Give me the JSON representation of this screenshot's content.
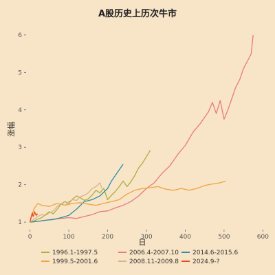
{
  "chart_data": {
    "type": "line",
    "title": "A股历史上历次牛市",
    "xlabel": "日",
    "ylabel": "涨幅",
    "xlim": [
      -10,
      610
    ],
    "ylim": [
      0.8,
      6.2
    ],
    "x_ticks": [
      0,
      100,
      200,
      300,
      400,
      500,
      600
    ],
    "y_ticks": [
      1,
      2,
      3,
      4,
      5,
      6
    ],
    "grid": false,
    "legend_position": "bottom",
    "series": [
      {
        "name": "1996.1-1997.5",
        "color": "#a9b03c",
        "points": [
          [
            0,
            1.0
          ],
          [
            10,
            1.03
          ],
          [
            20,
            1.08
          ],
          [
            30,
            1.12
          ],
          [
            40,
            1.2
          ],
          [
            50,
            1.28
          ],
          [
            60,
            1.22
          ],
          [
            70,
            1.35
          ],
          [
            80,
            1.48
          ],
          [
            90,
            1.55
          ],
          [
            100,
            1.5
          ],
          [
            110,
            1.62
          ],
          [
            120,
            1.7
          ],
          [
            130,
            1.65
          ],
          [
            140,
            1.58
          ],
          [
            150,
            1.62
          ],
          [
            160,
            1.72
          ],
          [
            170,
            1.85
          ],
          [
            180,
            1.78
          ],
          [
            190,
            1.9
          ],
          [
            200,
            1.6
          ],
          [
            210,
            1.72
          ],
          [
            220,
            1.82
          ],
          [
            230,
            1.95
          ],
          [
            240,
            2.1
          ],
          [
            250,
            1.95
          ],
          [
            260,
            2.08
          ],
          [
            270,
            2.25
          ],
          [
            280,
            2.45
          ],
          [
            290,
            2.58
          ],
          [
            300,
            2.75
          ],
          [
            310,
            2.92
          ]
        ]
      },
      {
        "name": "2006.4-2007.10",
        "color": "#e87b7b",
        "points": [
          [
            0,
            1.0
          ],
          [
            20,
            1.02
          ],
          [
            40,
            1.05
          ],
          [
            60,
            1.08
          ],
          [
            80,
            1.1
          ],
          [
            100,
            1.12
          ],
          [
            120,
            1.1
          ],
          [
            140,
            1.15
          ],
          [
            160,
            1.2
          ],
          [
            180,
            1.28
          ],
          [
            200,
            1.3
          ],
          [
            220,
            1.38
          ],
          [
            240,
            1.45
          ],
          [
            260,
            1.55
          ],
          [
            280,
            1.7
          ],
          [
            300,
            1.9
          ],
          [
            320,
            2.05
          ],
          [
            340,
            2.3
          ],
          [
            360,
            2.5
          ],
          [
            380,
            2.8
          ],
          [
            400,
            3.05
          ],
          [
            420,
            3.4
          ],
          [
            440,
            3.65
          ],
          [
            460,
            3.95
          ],
          [
            470,
            4.2
          ],
          [
            480,
            3.9
          ],
          [
            490,
            4.25
          ],
          [
            500,
            3.75
          ],
          [
            510,
            4.0
          ],
          [
            520,
            4.3
          ],
          [
            530,
            4.6
          ],
          [
            540,
            4.8
          ],
          [
            550,
            5.1
          ],
          [
            560,
            5.3
          ],
          [
            570,
            5.5
          ],
          [
            575,
            6.0
          ]
        ]
      },
      {
        "name": "2014.6-2015.6",
        "color": "#2b8fa8",
        "points": [
          [
            0,
            1.0
          ],
          [
            20,
            1.02
          ],
          [
            40,
            1.05
          ],
          [
            60,
            1.07
          ],
          [
            80,
            1.12
          ],
          [
            100,
            1.18
          ],
          [
            120,
            1.35
          ],
          [
            140,
            1.55
          ],
          [
            160,
            1.6
          ],
          [
            180,
            1.7
          ],
          [
            200,
            1.9
          ],
          [
            210,
            2.1
          ],
          [
            220,
            2.25
          ],
          [
            230,
            2.4
          ],
          [
            240,
            2.55
          ]
        ]
      },
      {
        "name": "1999.5-2001.6",
        "color": "#f0a342",
        "points": [
          [
            0,
            1.0
          ],
          [
            10,
            1.35
          ],
          [
            20,
            1.5
          ],
          [
            30,
            1.45
          ],
          [
            50,
            1.42
          ],
          [
            70,
            1.5
          ],
          [
            90,
            1.45
          ],
          [
            110,
            1.5
          ],
          [
            130,
            1.52
          ],
          [
            150,
            1.48
          ],
          [
            170,
            1.45
          ],
          [
            190,
            1.5
          ],
          [
            210,
            1.55
          ],
          [
            230,
            1.6
          ],
          [
            250,
            1.75
          ],
          [
            270,
            1.85
          ],
          [
            290,
            1.9
          ],
          [
            310,
            1.92
          ],
          [
            330,
            1.95
          ],
          [
            350,
            1.88
          ],
          [
            370,
            1.85
          ],
          [
            390,
            1.9
          ],
          [
            410,
            1.85
          ],
          [
            430,
            1.9
          ],
          [
            450,
            1.98
          ],
          [
            470,
            2.02
          ],
          [
            490,
            2.05
          ],
          [
            505,
            2.1
          ]
        ]
      },
      {
        "name": "2008.11-2009.8",
        "color": "#d9b48a",
        "points": [
          [
            0,
            1.0
          ],
          [
            10,
            1.08
          ],
          [
            20,
            1.15
          ],
          [
            30,
            1.2
          ],
          [
            40,
            1.18
          ],
          [
            50,
            1.25
          ],
          [
            60,
            1.3
          ],
          [
            70,
            1.42
          ],
          [
            80,
            1.5
          ],
          [
            90,
            1.45
          ],
          [
            100,
            1.55
          ],
          [
            110,
            1.6
          ],
          [
            120,
            1.58
          ],
          [
            130,
            1.68
          ],
          [
            140,
            1.72
          ],
          [
            150,
            1.78
          ],
          [
            160,
            1.9
          ],
          [
            170,
            1.95
          ],
          [
            180,
            2.05
          ],
          [
            185,
            1.9
          ]
        ]
      },
      {
        "name": "2024.9-?",
        "color": "#e04e1e",
        "points": [
          [
            0,
            1.0
          ],
          [
            2,
            1.1
          ],
          [
            4,
            1.18
          ],
          [
            6,
            1.25
          ],
          [
            8,
            1.15
          ],
          [
            10,
            1.2
          ],
          [
            12,
            1.28
          ],
          [
            14,
            1.22
          ],
          [
            16,
            1.18
          ],
          [
            18,
            1.22
          ],
          [
            20,
            1.2
          ]
        ]
      }
    ]
  }
}
